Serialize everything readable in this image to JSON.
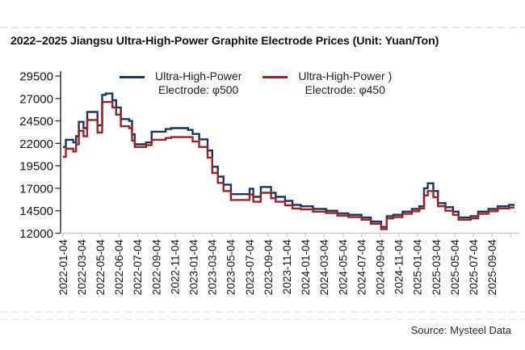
{
  "page": {
    "title": "2022–2025 Jiangsu Ultra-High-Power Graphite Electrode Prices (Unit: Yuan/Ton)",
    "source": "Source: Mysteel Data"
  },
  "chart_data": {
    "type": "line",
    "title": "2022–2025 Jiangsu Ultra-High-Power Graphite Electrode Prices (Unit: Yuan/Ton)",
    "unit": "Yuan/Ton",
    "line_style": "step",
    "grid": false,
    "legend": {
      "position": "top-center",
      "entries": [
        {
          "line1": "Ultra-High-Power",
          "line2": "Electrode: φ500"
        },
        {
          "line1": "Ultra-High-Power )",
          "line2": "Electrode: φ450"
        }
      ]
    },
    "y_axis": {
      "min": 12000,
      "max": 29500,
      "ticks": [
        12000,
        14500,
        17000,
        19500,
        22000,
        24500,
        27000,
        29500
      ]
    },
    "x_axis": {
      "unit": "tick_index",
      "tick_labels": [
        "2022-01-04",
        "2022-03-04",
        "2022-05-04",
        "2022-06-04",
        "2022-07-04",
        "2022-09-04",
        "2022-11-04",
        "2023-01-04",
        "2023-03-04",
        "2023-05-04",
        "2023-07-04",
        "2023-09-04",
        "2023-11-04",
        "2024-01-04",
        "2024-03-04",
        "2024-05-04",
        "2024-07-04",
        "2024-09-04",
        "2024-11-04",
        "2025-01-04",
        "2025-03-04",
        "2025-05-04",
        "2025-07-04",
        "2025-09-04"
      ]
    },
    "series": [
      {
        "name": "Ultra-High-Power Electrode: φ500",
        "color": "#17365D",
        "points": [
          [
            0,
            21600
          ],
          [
            0.15,
            22400
          ],
          [
            0.45,
            22400
          ],
          [
            0.55,
            22100
          ],
          [
            0.7,
            22800
          ],
          [
            0.85,
            24400
          ],
          [
            1.1,
            23700
          ],
          [
            1.3,
            25500
          ],
          [
            1.7,
            25500
          ],
          [
            1.85,
            24000
          ],
          [
            2.1,
            27400
          ],
          [
            2.3,
            27550
          ],
          [
            2.5,
            27550
          ],
          [
            2.65,
            26800
          ],
          [
            2.85,
            26000
          ],
          [
            3.1,
            24700
          ],
          [
            3.55,
            24500
          ],
          [
            3.7,
            23000
          ],
          [
            3.85,
            21900
          ],
          [
            4.35,
            21900
          ],
          [
            4.45,
            22100
          ],
          [
            4.75,
            23300
          ],
          [
            5.1,
            23300
          ],
          [
            5.5,
            23600
          ],
          [
            5.8,
            23700
          ],
          [
            6.6,
            23700
          ],
          [
            6.7,
            23500
          ],
          [
            6.95,
            23050
          ],
          [
            7.3,
            22450
          ],
          [
            7.75,
            21200
          ],
          [
            8.0,
            19400
          ],
          [
            8.3,
            18300
          ],
          [
            8.6,
            17400
          ],
          [
            9.0,
            16350
          ],
          [
            9.9,
            16350
          ],
          [
            10.0,
            16950
          ],
          [
            10.2,
            16050
          ],
          [
            10.6,
            17150
          ],
          [
            11.05,
            17150
          ],
          [
            11.15,
            16500
          ],
          [
            11.4,
            16050
          ],
          [
            11.9,
            15600
          ],
          [
            12.3,
            15150
          ],
          [
            12.75,
            15000
          ],
          [
            13.4,
            14700
          ],
          [
            14.1,
            14500
          ],
          [
            14.7,
            14200
          ],
          [
            15.3,
            14050
          ],
          [
            16.0,
            13750
          ],
          [
            16.5,
            13300
          ],
          [
            17.05,
            12700
          ],
          [
            17.35,
            13900
          ],
          [
            17.7,
            14050
          ],
          [
            18.2,
            14400
          ],
          [
            18.7,
            14700
          ],
          [
            19.1,
            15000
          ],
          [
            19.35,
            17000
          ],
          [
            19.55,
            17550
          ],
          [
            19.85,
            16700
          ],
          [
            20.1,
            15350
          ],
          [
            20.5,
            14900
          ],
          [
            20.9,
            14400
          ],
          [
            21.2,
            13750
          ],
          [
            21.85,
            13900
          ],
          [
            22.25,
            14400
          ],
          [
            22.8,
            14700
          ],
          [
            23.3,
            15000
          ],
          [
            23.9,
            15150
          ],
          [
            24.2,
            15150
          ]
        ]
      },
      {
        "name": "Ultra-High-Power Electrode: φ450",
        "color": "#A02123",
        "points": [
          [
            0,
            20500
          ],
          [
            0.15,
            21400
          ],
          [
            0.45,
            21400
          ],
          [
            0.55,
            21100
          ],
          [
            0.7,
            21900
          ],
          [
            0.85,
            23400
          ],
          [
            1.1,
            22800
          ],
          [
            1.3,
            24600
          ],
          [
            1.7,
            24600
          ],
          [
            1.85,
            23200
          ],
          [
            2.1,
            26600
          ],
          [
            2.5,
            26600
          ],
          [
            2.65,
            26000
          ],
          [
            2.85,
            25200
          ],
          [
            3.1,
            23900
          ],
          [
            3.55,
            23700
          ],
          [
            3.7,
            22300
          ],
          [
            3.85,
            21600
          ],
          [
            4.35,
            21600
          ],
          [
            4.45,
            21800
          ],
          [
            4.75,
            22400
          ],
          [
            5.1,
            22400
          ],
          [
            5.5,
            22600
          ],
          [
            5.8,
            22700
          ],
          [
            6.6,
            22700
          ],
          [
            6.95,
            22200
          ],
          [
            7.3,
            21600
          ],
          [
            7.75,
            20400
          ],
          [
            8.0,
            18700
          ],
          [
            8.3,
            17600
          ],
          [
            8.6,
            16700
          ],
          [
            9.0,
            15700
          ],
          [
            9.9,
            15700
          ],
          [
            10.0,
            16300
          ],
          [
            10.2,
            15500
          ],
          [
            10.6,
            16500
          ],
          [
            11.05,
            16500
          ],
          [
            11.15,
            15900
          ],
          [
            11.4,
            15500
          ],
          [
            11.9,
            15100
          ],
          [
            12.3,
            14750
          ],
          [
            12.75,
            14650
          ],
          [
            13.4,
            14400
          ],
          [
            14.1,
            14250
          ],
          [
            14.7,
            13950
          ],
          [
            15.3,
            13800
          ],
          [
            16.0,
            13500
          ],
          [
            16.5,
            13050
          ],
          [
            17.05,
            12450
          ],
          [
            17.35,
            13650
          ],
          [
            17.7,
            13800
          ],
          [
            18.2,
            14150
          ],
          [
            18.7,
            14450
          ],
          [
            19.1,
            14750
          ],
          [
            19.35,
            16200
          ],
          [
            19.55,
            16700
          ],
          [
            19.85,
            16000
          ],
          [
            20.1,
            15000
          ],
          [
            20.5,
            14500
          ],
          [
            20.9,
            14050
          ],
          [
            21.2,
            13500
          ],
          [
            21.85,
            13650
          ],
          [
            22.25,
            14150
          ],
          [
            22.8,
            14450
          ],
          [
            23.3,
            14750
          ],
          [
            23.9,
            14850
          ],
          [
            24.2,
            14850
          ]
        ]
      }
    ]
  }
}
